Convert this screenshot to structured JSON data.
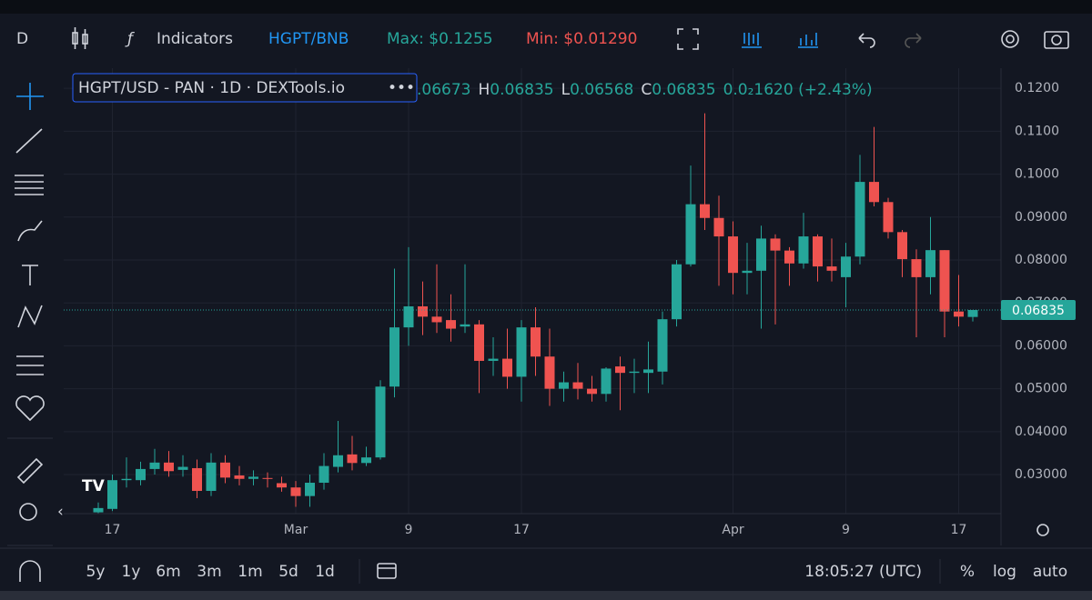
{
  "toolbar": {
    "interval": "D",
    "indicators": "Indicators",
    "pair": "HGPT/BNB",
    "max": "Max: $0.1255",
    "min": "Min: $0.01290"
  },
  "legend": {
    "title": "HGPT/USD - PAN · 1D · DEXTools.io",
    "more": "•••",
    "items": [
      {
        "k": "",
        "v": ".06673"
      },
      {
        "k": "H",
        "v": "0.06835"
      },
      {
        "k": "L",
        "v": "0.06568"
      },
      {
        "k": "C",
        "v": "0.06835"
      }
    ],
    "change": "0.0₂1620 (+2.43%)"
  },
  "chart_data": {
    "type": "candlestick",
    "categories": [
      null,
      "17",
      null,
      null,
      null,
      null,
      null,
      null,
      null,
      null,
      null,
      null,
      null,
      null,
      "Mar",
      null,
      null,
      null,
      null,
      null,
      null,
      null,
      "9",
      null,
      null,
      null,
      null,
      null,
      null,
      null,
      "17",
      null,
      null,
      null,
      null,
      null,
      null,
      null,
      null,
      null,
      null,
      null,
      null,
      null,
      null,
      "Apr",
      null,
      null,
      null,
      null,
      null,
      null,
      null,
      "9",
      null,
      null,
      null,
      null,
      null,
      null,
      null,
      "17",
      null
    ],
    "open": [
      0.0212,
      0.022,
      0.0287,
      0.0287,
      0.0313,
      0.0328,
      0.0311,
      0.0315,
      0.0262,
      0.0328,
      0.0298,
      0.029,
      0.0292,
      0.028,
      0.027,
      0.025,
      0.0281,
      0.0318,
      0.0347,
      0.0327,
      0.034,
      0.0505,
      0.0643,
      0.0692,
      0.0668,
      0.066,
      0.0645,
      0.065,
      0.0565,
      0.057,
      0.0528,
      0.0643,
      0.0575,
      0.05,
      0.0515,
      0.05,
      0.0488,
      0.0552,
      0.0537,
      0.0537,
      0.054,
      0.0662,
      0.079,
      0.093,
      0.0898,
      0.0855,
      0.077,
      0.0775,
      0.085,
      0.0822,
      0.0792,
      0.0855,
      0.0785,
      0.076,
      0.0808,
      0.0982,
      0.0935,
      0.0865,
      0.0802,
      0.076,
      0.0823,
      0.068,
      0.06673
    ],
    "high": [
      0.0235,
      0.03,
      0.034,
      0.033,
      0.036,
      0.0355,
      0.0345,
      0.0335,
      0.035,
      0.0345,
      0.032,
      0.031,
      0.0305,
      0.0295,
      0.0285,
      0.03,
      0.035,
      0.0425,
      0.039,
      0.0365,
      0.052,
      0.078,
      0.083,
      0.075,
      0.079,
      0.072,
      0.079,
      0.066,
      0.062,
      0.064,
      0.066,
      0.069,
      0.064,
      0.054,
      0.056,
      0.053,
      0.055,
      0.0575,
      0.057,
      0.061,
      0.068,
      0.08,
      0.102,
      0.1142,
      0.095,
      0.089,
      0.084,
      0.088,
      0.086,
      0.083,
      0.091,
      0.086,
      0.085,
      0.084,
      0.1045,
      0.111,
      0.0945,
      0.087,
      0.0825,
      0.09,
      0.0823,
      0.0765,
      0.06835
    ],
    "low": [
      0.0205,
      0.0215,
      0.027,
      0.0275,
      0.03,
      0.0295,
      0.0295,
      0.0245,
      0.025,
      0.028,
      0.0275,
      0.0275,
      0.027,
      0.026,
      0.0225,
      0.0225,
      0.0265,
      0.0305,
      0.031,
      0.032,
      0.0335,
      0.048,
      0.06,
      0.0625,
      0.063,
      0.061,
      0.063,
      0.049,
      0.053,
      0.05,
      0.047,
      0.053,
      0.046,
      0.047,
      0.0475,
      0.047,
      0.047,
      0.045,
      0.049,
      0.049,
      0.051,
      0.0645,
      0.0785,
      0.087,
      0.074,
      0.072,
      0.072,
      0.064,
      0.065,
      0.074,
      0.078,
      0.075,
      0.075,
      0.069,
      0.079,
      0.0925,
      0.085,
      0.076,
      0.062,
      0.072,
      0.062,
      0.0645,
      0.06568
    ],
    "close": [
      0.0222,
      0.0287,
      0.029,
      0.0313,
      0.0328,
      0.0308,
      0.0318,
      0.0262,
      0.0328,
      0.0293,
      0.029,
      0.0295,
      0.029,
      0.027,
      0.025,
      0.0281,
      0.032,
      0.0345,
      0.0327,
      0.034,
      0.0505,
      0.0643,
      0.0692,
      0.0668,
      0.0655,
      0.064,
      0.065,
      0.0565,
      0.057,
      0.0528,
      0.0643,
      0.0575,
      0.05,
      0.0515,
      0.05,
      0.0488,
      0.0547,
      0.0537,
      0.054,
      0.0545,
      0.0662,
      0.079,
      0.093,
      0.0898,
      0.0855,
      0.077,
      0.0775,
      0.085,
      0.0822,
      0.0792,
      0.0855,
      0.0785,
      0.0775,
      0.0808,
      0.0982,
      0.0935,
      0.0865,
      0.0802,
      0.076,
      0.0823,
      0.068,
      0.0668,
      0.06835
    ],
    "up_color": "#26a69a",
    "down_color": "#ef5350",
    "ylim": [
      0.0209,
      0.1247
    ],
    "yticks": [
      {
        "value": 0.03,
        "label": "0.03000"
      },
      {
        "value": 0.04,
        "label": "0.04000"
      },
      {
        "value": 0.05,
        "label": "0.05000"
      },
      {
        "value": 0.06,
        "label": "0.06000"
      },
      {
        "value": 0.07,
        "label": "0.07000"
      },
      {
        "value": 0.08,
        "label": "0.08000"
      },
      {
        "value": 0.09,
        "label": "0.09000"
      },
      {
        "value": 0.1,
        "label": "0.1000"
      },
      {
        "value": 0.11,
        "label": "0.1100"
      },
      {
        "value": 0.12,
        "label": "0.1200"
      }
    ],
    "last_price": 0.06835,
    "grid": true
  },
  "bottom": {
    "ranges": [
      "5y",
      "1y",
      "6m",
      "3m",
      "1m",
      "5d",
      "1d"
    ],
    "time": "18:05:27 (UTC)",
    "options": [
      "%",
      "log",
      "auto"
    ]
  }
}
